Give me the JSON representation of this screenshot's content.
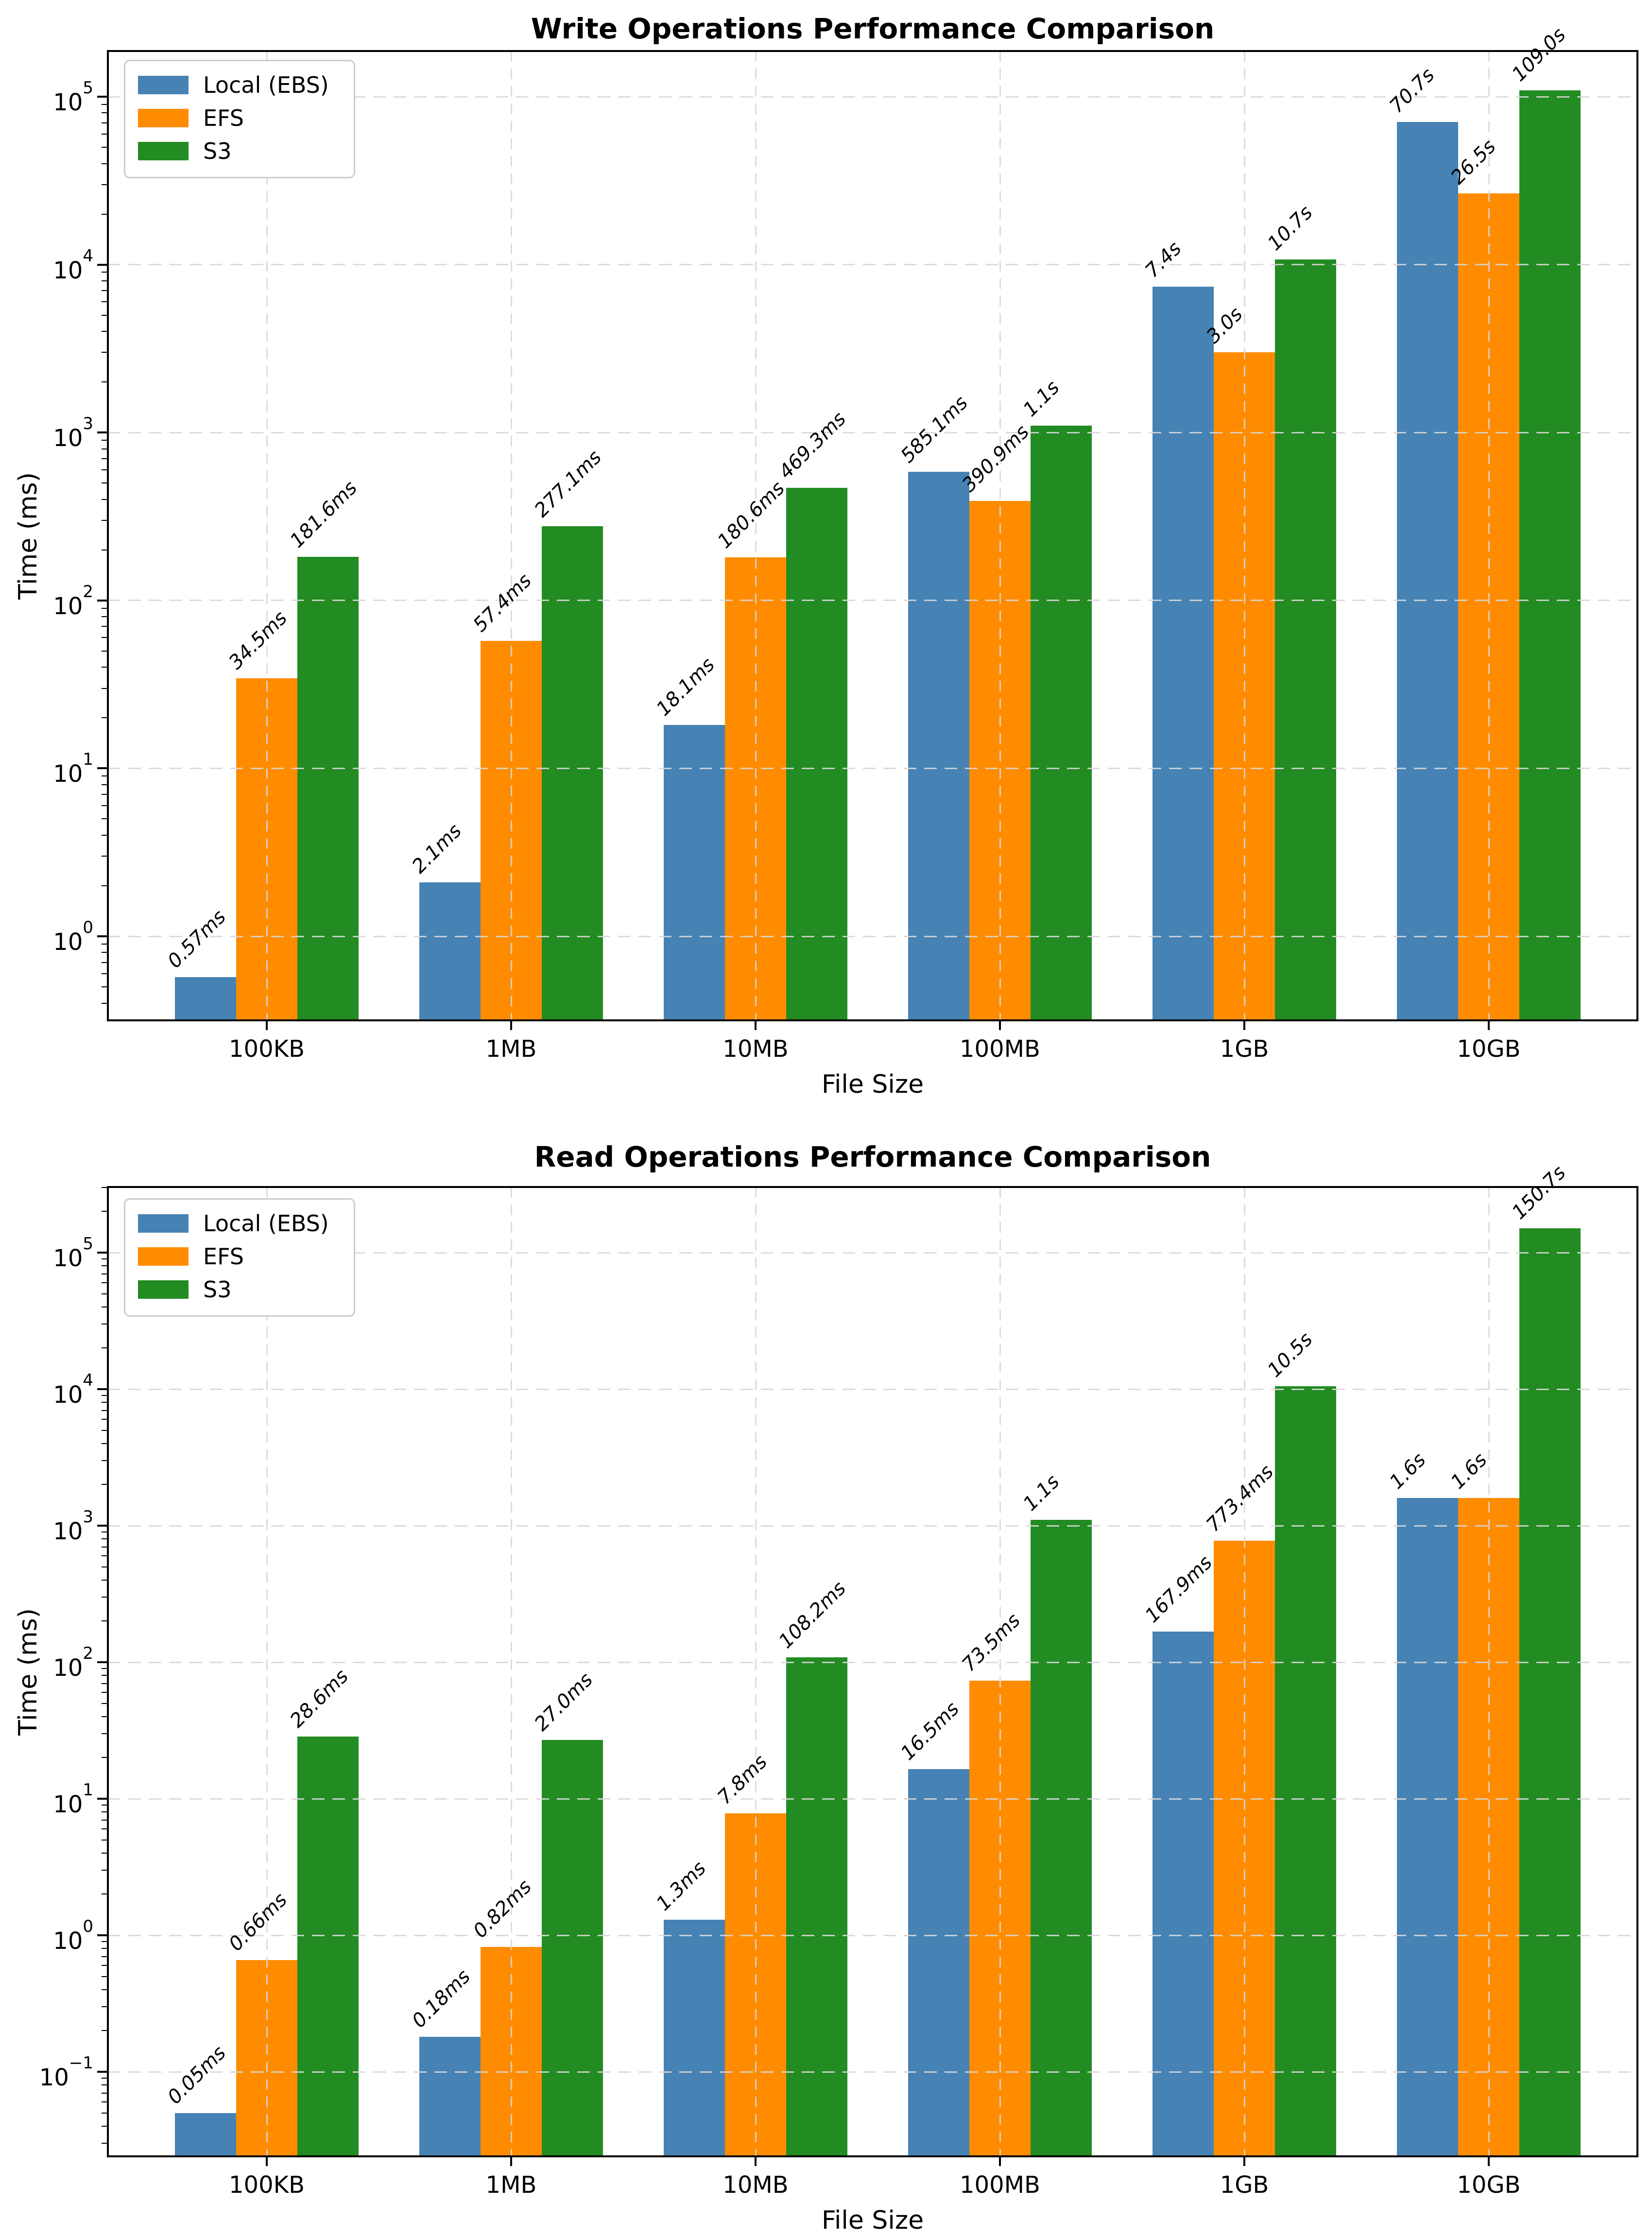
{
  "chart_data": [
    {
      "type": "bar",
      "title": "Write Operations Performance Comparison",
      "xlabel": "File Size",
      "ylabel": "Time (ms)",
      "categories": [
        "100KB",
        "1MB",
        "10MB",
        "100MB",
        "1GB",
        "10GB"
      ],
      "y_scale": "log",
      "ylim_log10": [
        -0.5,
        5.27
      ],
      "ytick_exponents": [
        0,
        1,
        2,
        3,
        4,
        5
      ],
      "grid": true,
      "legend_position": "upper left",
      "series": [
        {
          "name": "Local (EBS)",
          "color": "#4682B4",
          "values_ms": [
            0.57,
            2.1,
            18.1,
            585.1,
            7400,
            70700
          ],
          "labels": [
            "0.57ms",
            "2.1ms",
            "18.1ms",
            "585.1ms",
            "7.4s",
            "70.7s"
          ]
        },
        {
          "name": "EFS",
          "color": "#FF8C00",
          "values_ms": [
            34.5,
            57.4,
            180.6,
            390.9,
            3000,
            26500
          ],
          "labels": [
            "34.5ms",
            "57.4ms",
            "180.6ms",
            "390.9ms",
            "3.0s",
            "26.5s"
          ]
        },
        {
          "name": "S3",
          "color": "#228B22",
          "values_ms": [
            181.6,
            277.1,
            469.3,
            1100,
            10700,
            109000
          ],
          "labels": [
            "181.6ms",
            "277.1ms",
            "469.3ms",
            "1.1s",
            "10.7s",
            "109.0s"
          ]
        }
      ]
    },
    {
      "type": "bar",
      "title": "Read Operations Performance Comparison",
      "xlabel": "File Size",
      "ylabel": "Time (ms)",
      "categories": [
        "100KB",
        "1MB",
        "10MB",
        "100MB",
        "1GB",
        "10GB"
      ],
      "y_scale": "log",
      "ylim_log10": [
        -1.62,
        5.48
      ],
      "ytick_exponents": [
        -1,
        0,
        1,
        2,
        3,
        4,
        5
      ],
      "grid": true,
      "legend_position": "upper left",
      "series": [
        {
          "name": "Local (EBS)",
          "color": "#4682B4",
          "values_ms": [
            0.05,
            0.18,
            1.3,
            16.5,
            167.9,
            1600
          ],
          "labels": [
            "0.05ms",
            "0.18ms",
            "1.3ms",
            "16.5ms",
            "167.9ms",
            "1.6s"
          ]
        },
        {
          "name": "EFS",
          "color": "#FF8C00",
          "values_ms": [
            0.66,
            0.82,
            7.8,
            73.5,
            773.4,
            1600
          ],
          "labels": [
            "0.66ms",
            "0.82ms",
            "7.8ms",
            "73.5ms",
            "773.4ms",
            "1.6s"
          ]
        },
        {
          "name": "S3",
          "color": "#228B22",
          "values_ms": [
            28.6,
            27.0,
            108.2,
            1100,
            10500,
            150700
          ],
          "labels": [
            "28.6ms",
            "27.0ms",
            "108.2ms",
            "1.1s",
            "10.5s",
            "150.7s"
          ]
        }
      ]
    }
  ]
}
